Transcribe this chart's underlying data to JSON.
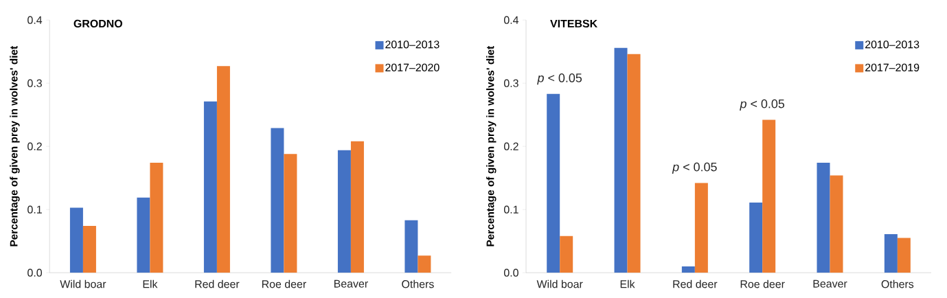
{
  "chart_data": [
    {
      "type": "bar",
      "title": "GRODNO",
      "ylabel": "Percentage of given prey in wolves' diet",
      "categories": [
        "Wild boar",
        "Elk",
        "Red deer",
        "Roe deer",
        "Beaver",
        "Others"
      ],
      "series": [
        {
          "name": "2010–2013",
          "color": "#4472c4",
          "values": [
            0.103,
            0.119,
            0.271,
            0.229,
            0.194,
            0.083
          ]
        },
        {
          "name": "2017–2020",
          "color": "#ed7d31",
          "values": [
            0.074,
            0.174,
            0.327,
            0.188,
            0.208,
            0.027
          ]
        }
      ],
      "ylim": [
        0,
        0.4
      ],
      "yticks": [
        {
          "value": 0,
          "label": "0.0"
        },
        0.1,
        0.2,
        0.3,
        0.4
      ],
      "legend": "top right",
      "grid": false
    },
    {
      "type": "bar",
      "title": "VITEBSK",
      "ylabel": "Percentage of given prey in wolves' diet",
      "categories": [
        "Wild boar",
        "Elk",
        "Red deer",
        "Roe deer",
        "Beaver",
        "Others"
      ],
      "series": [
        {
          "name": "2010–2013",
          "color": "#4472c4",
          "values": [
            0.283,
            0.356,
            0.01,
            0.111,
            0.174,
            0.061
          ]
        },
        {
          "name": "2017–2019",
          "color": "#ed7d31",
          "values": [
            0.058,
            0.346,
            0.142,
            0.242,
            0.154,
            0.055
          ]
        }
      ],
      "ylim": [
        0,
        0.4
      ],
      "yticks": [
        {
          "value": 0,
          "label": "0.0"
        },
        0.1,
        0.2,
        0.3,
        0.4
      ],
      "legend": "top right",
      "grid": false,
      "annotations": [
        {
          "text": "*p* < 0.05",
          "x": "Wild boar",
          "y": 0.283
        },
        {
          "text": "*p* < 0.05",
          "x": "Red deer",
          "y": 0.142
        },
        {
          "text": "*p* < 0.05",
          "x": "Roe deer",
          "y": 0.242
        }
      ]
    }
  ]
}
